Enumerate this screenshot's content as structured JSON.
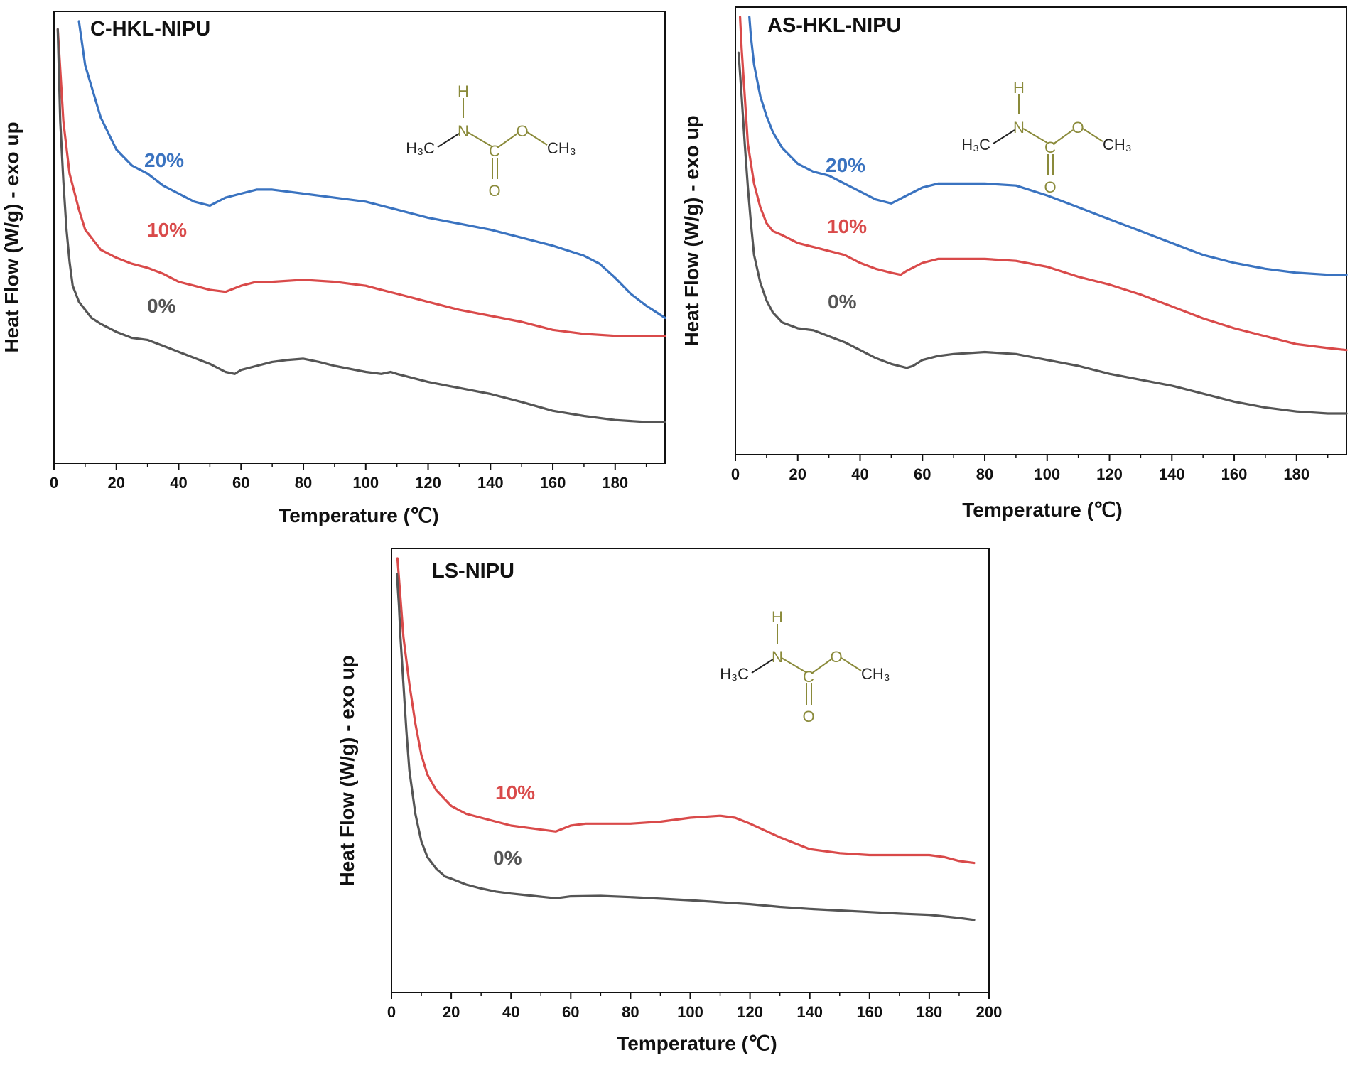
{
  "figure": {
    "panels": [
      {
        "id": "c-hkl",
        "chart_data": {
          "type": "line",
          "title": "C-HKL-NIPU",
          "xlabel": "Temperature (℃)",
          "ylabel": "Heat Flow (W/g) - exo up",
          "xlim": [
            0,
            196
          ],
          "ylim": [
            0,
            100
          ],
          "xticks": [
            "0",
            "20",
            "40",
            "60",
            "80",
            "100",
            "120",
            "140",
            "160",
            "180"
          ],
          "y_ticks_shown": false,
          "series": [
            {
              "name": "20%",
              "color": "#3a73c0",
              "x": [
                8,
                10,
                15,
                20,
                25,
                30,
                35,
                40,
                45,
                50,
                55,
                60,
                65,
                70,
                80,
                90,
                100,
                105,
                110,
                120,
                130,
                140,
                150,
                160,
                170,
                175,
                180,
                185,
                190,
                196
              ],
              "y": [
                100,
                89,
                76,
                68,
                64,
                62,
                59,
                57,
                55,
                54,
                56,
                57,
                58,
                58,
                57,
                56,
                55,
                54,
                53,
                51,
                49.5,
                48,
                46,
                44,
                41.5,
                39.5,
                36,
                32,
                29,
                26
              ]
            },
            {
              "name": "10%",
              "color": "#d94a4a",
              "x": [
                1.2,
                2,
                3,
                5,
                8,
                10,
                15,
                20,
                25,
                30,
                35,
                40,
                45,
                50,
                55,
                60,
                65,
                70,
                80,
                90,
                100,
                105,
                110,
                120,
                130,
                140,
                150,
                160,
                170,
                180,
                190,
                196
              ],
              "y": [
                98,
                88,
                75,
                62,
                53,
                48,
                43,
                41,
                39.5,
                38.5,
                37,
                35,
                34,
                33,
                32.5,
                34,
                35,
                35,
                35.5,
                35,
                34,
                33,
                32,
                30,
                28,
                26.5,
                25,
                23,
                22,
                21.5,
                21.5,
                21.5
              ]
            },
            {
              "name": "0%",
              "color": "#555555",
              "x": [
                1.2,
                2,
                3,
                4,
                5,
                6,
                8,
                10,
                12,
                15,
                20,
                25,
                30,
                35,
                40,
                45,
                50,
                55,
                58,
                60,
                65,
                70,
                75,
                80,
                85,
                90,
                100,
                105,
                108,
                110,
                120,
                130,
                140,
                150,
                160,
                170,
                180,
                190,
                196
              ],
              "y": [
                98,
                75,
                60,
                48,
                40,
                34,
                30,
                28,
                26,
                24.5,
                22.5,
                21,
                20.5,
                19,
                17.5,
                16,
                14.5,
                12.5,
                12,
                13,
                14,
                15,
                15.5,
                15.8,
                15,
                14,
                12.5,
                12,
                12.5,
                12,
                10,
                8.5,
                7,
                5,
                2.8,
                1.5,
                0.5,
                0,
                0
              ]
            }
          ],
          "annotations": [
            "20%",
            "10%",
            "0%"
          ]
        },
        "structure": {
          "H": "H",
          "N": "N",
          "C": "C",
          "O1": "O",
          "O2": "O",
          "ch3_left": "H₃C",
          "ch3_right": "CH₃"
        }
      },
      {
        "id": "as-hkl",
        "chart_data": {
          "type": "line",
          "title": "AS-HKL-NIPU",
          "xlabel": "Temperature (℃)",
          "ylabel": "Heat Flow (W/g) - exo up",
          "xlim": [
            0,
            196
          ],
          "ylim": [
            0,
            100
          ],
          "xticks": [
            "0",
            "20",
            "40",
            "60",
            "80",
            "100",
            "120",
            "140",
            "160",
            "180"
          ],
          "y_ticks_shown": false,
          "series": [
            {
              "name": "20%",
              "color": "#3a73c0",
              "x": [
                4.5,
                5,
                6,
                8,
                10,
                12,
                15,
                20,
                25,
                30,
                35,
                40,
                45,
                50,
                55,
                60,
                65,
                70,
                80,
                90,
                100,
                110,
                120,
                130,
                140,
                150,
                160,
                170,
                180,
                190,
                196
              ],
              "y": [
                100,
                95,
                88,
                80,
                75,
                71,
                67,
                63,
                61,
                60,
                58,
                56,
                54,
                53,
                55,
                57,
                58,
                58,
                58,
                57.5,
                55,
                52,
                49,
                46,
                43,
                40,
                38,
                36.5,
                35.5,
                35,
                35
              ]
            },
            {
              "name": "10%",
              "color": "#d94a4a",
              "x": [
                1.5,
                2,
                3,
                4,
                6,
                8,
                10,
                12,
                15,
                20,
                25,
                30,
                35,
                40,
                45,
                50,
                53,
                55,
                60,
                65,
                70,
                80,
                90,
                100,
                110,
                120,
                130,
                140,
                150,
                160,
                170,
                180,
                190,
                196
              ],
              "y": [
                100,
                92,
                80,
                68,
                58,
                52,
                48,
                46,
                45,
                43,
                42,
                41,
                40,
                38,
                36.5,
                35.5,
                35,
                36,
                38,
                39,
                39,
                39,
                38.5,
                37,
                34.5,
                32.5,
                30,
                27,
                24,
                21.5,
                19.5,
                17.5,
                16.5,
                16
              ]
            },
            {
              "name": "0%",
              "color": "#555555",
              "x": [
                1,
                1.3,
                2,
                3,
                4,
                5,
                6,
                8,
                10,
                12,
                15,
                20,
                25,
                30,
                35,
                40,
                45,
                50,
                55,
                57,
                60,
                65,
                70,
                80,
                90,
                100,
                110,
                120,
                130,
                140,
                150,
                160,
                170,
                180,
                190,
                196
              ],
              "y": [
                91,
                88,
                80,
                68,
                57,
                48,
                40,
                33,
                28.5,
                25.5,
                23,
                21.5,
                21,
                19.5,
                18,
                16,
                14,
                12.5,
                11.5,
                12,
                13.5,
                14.5,
                15,
                15.5,
                15,
                13.5,
                12,
                10,
                8.5,
                7,
                5,
                3,
                1.5,
                0.5,
                0,
                0
              ]
            }
          ],
          "annotations": [
            "20%",
            "10%",
            "0%"
          ]
        },
        "structure": {
          "H": "H",
          "N": "N",
          "C": "C",
          "O1": "O",
          "O2": "O",
          "ch3_left": "H₃C",
          "ch3_right": "CH₃"
        }
      },
      {
        "id": "ls",
        "chart_data": {
          "type": "line",
          "title": "LS-NIPU",
          "xlabel": "Temperature (℃)",
          "ylabel": "Heat Flow (W/g) - exo up",
          "xlim": [
            0,
            200
          ],
          "ylim": [
            0,
            100
          ],
          "xticks": [
            "0",
            "20",
            "40",
            "60",
            "80",
            "100",
            "120",
            "140",
            "160",
            "180",
            "200"
          ],
          "y_ticks_shown": false,
          "series": [
            {
              "name": "10%",
              "color": "#d94a4a",
              "x": [
                2,
                3,
                4,
                6,
                8,
                10,
                12,
                15,
                20,
                25,
                30,
                35,
                40,
                45,
                50,
                55,
                60,
                65,
                70,
                80,
                90,
                100,
                110,
                115,
                120,
                130,
                140,
                150,
                160,
                170,
                180,
                185,
                190,
                195
              ],
              "y": [
                100,
                90,
                80,
                68,
                58,
                50,
                45,
                41,
                37,
                35,
                34,
                33,
                32,
                31.5,
                31,
                30.5,
                32,
                32.5,
                32.5,
                32.5,
                33,
                34,
                34.5,
                34,
                32.5,
                29,
                26,
                25,
                24.5,
                24.5,
                24.5,
                24,
                23,
                22.5
              ]
            },
            {
              "name": "0%",
              "color": "#555555",
              "x": [
                1.8,
                2.5,
                3,
                4,
                5,
                6,
                8,
                10,
                12,
                15,
                18,
                20,
                25,
                30,
                35,
                40,
                45,
                50,
                55,
                60,
                70,
                80,
                90,
                100,
                110,
                120,
                130,
                140,
                150,
                160,
                170,
                180,
                190,
                195
              ],
              "y": [
                96,
                88,
                80,
                68,
                56,
                46,
                35,
                28,
                24,
                21,
                19,
                18.5,
                17,
                16,
                15.2,
                14.7,
                14.3,
                13.9,
                13.5,
                14,
                14.1,
                13.8,
                13.4,
                13,
                12.5,
                12,
                11.3,
                10.8,
                10.4,
                10,
                9.6,
                9.3,
                8.5,
                8
              ]
            }
          ],
          "annotations": [
            "10%",
            "0%"
          ]
        },
        "structure": {
          "H": "H",
          "N": "N",
          "C": "C",
          "O1": "O",
          "O2": "O",
          "ch3_left": "H₃C",
          "ch3_right": "CH₃"
        }
      }
    ]
  }
}
